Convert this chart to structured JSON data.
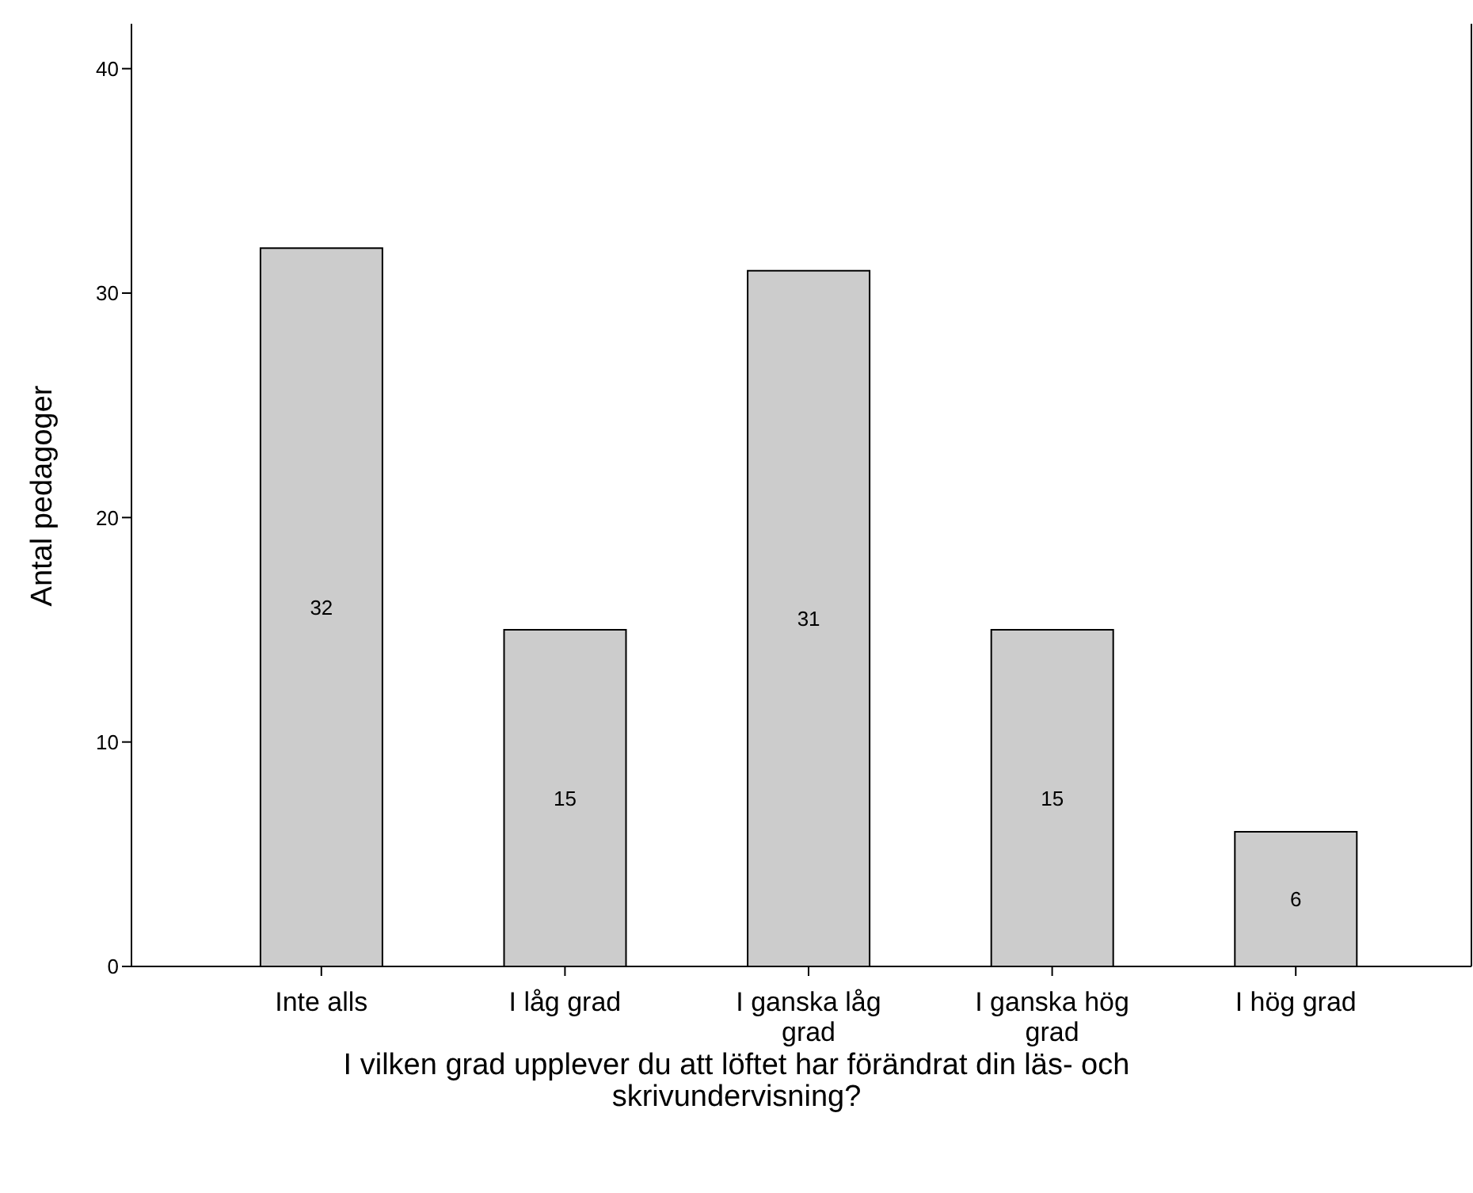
{
  "chart_data": {
    "type": "bar",
    "xlabel": "I vilken grad upplever du att löftet har förändrat din läs- och skrivundervisning?",
    "ylabel": "Antal pedagoger",
    "categories": [
      "Inte alls",
      "I låg grad",
      "I ganska låg grad",
      "I ganska hög grad",
      "I hög grad"
    ],
    "values": [
      32,
      15,
      31,
      15,
      6
    ],
    "color": "#cccccc",
    "data_labels": true,
    "grid": false,
    "ylim": [
      0,
      42
    ],
    "yticks": [
      0,
      10,
      20,
      30,
      40
    ]
  }
}
